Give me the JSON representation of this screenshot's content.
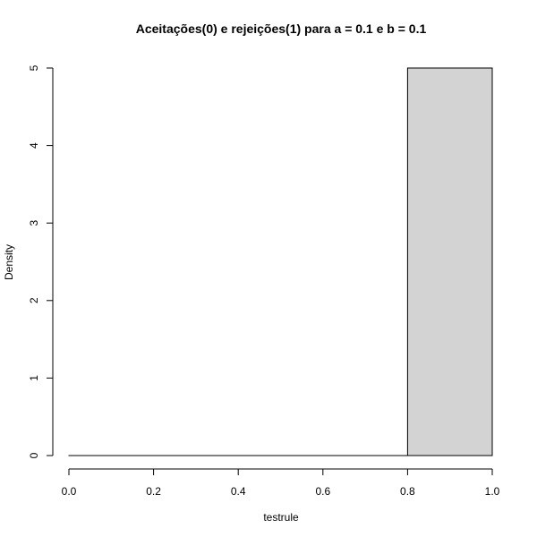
{
  "chart_data": {
    "type": "bar",
    "title": "Aceitações(0) e rejeições(1) para a = 0.1 e b = 0.1",
    "xlabel": "testrule",
    "ylabel": "Density",
    "xlim": [
      0,
      1
    ],
    "ylim": [
      0,
      5
    ],
    "bins": [
      {
        "x0": 0.0,
        "x1": 0.2,
        "value": 0
      },
      {
        "x0": 0.2,
        "x1": 0.4,
        "value": 0
      },
      {
        "x0": 0.4,
        "x1": 0.6,
        "value": 0
      },
      {
        "x0": 0.6,
        "x1": 0.8,
        "value": 0
      },
      {
        "x0": 0.8,
        "x1": 1.0,
        "value": 5
      }
    ],
    "x_ticks": [
      "0.0",
      "0.2",
      "0.4",
      "0.6",
      "0.8",
      "1.0"
    ],
    "y_ticks": [
      "0",
      "1",
      "2",
      "3",
      "4",
      "5"
    ],
    "bar_fill": "#d3d3d3",
    "bar_stroke": "#000000",
    "grid": false
  }
}
